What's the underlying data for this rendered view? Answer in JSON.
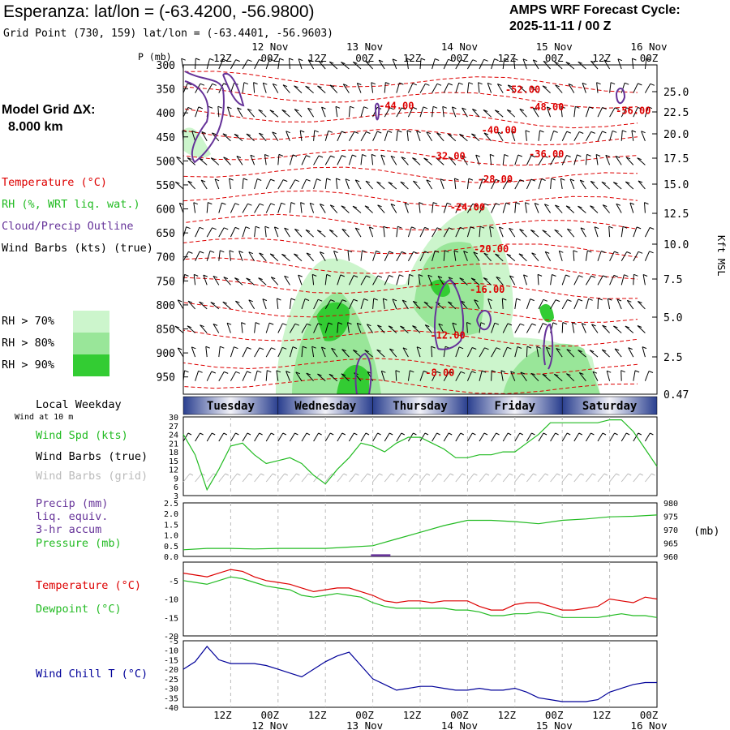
{
  "header": {
    "title": "Esperanza:  lat/lon = (-63.4200, -56.9800)",
    "subtitle": "Grid Point (730, 159) lat/lon = (-63.4401, -56.9603)",
    "cycle_line1": "AMPS WRF Forecast Cycle:",
    "cycle_line2": "2025-11-11 / 00  Z"
  },
  "model_grid": {
    "line1": "Model Grid ΔX:",
    "line2": "8.000 km"
  },
  "legend": {
    "temperature": "Temperature (°C)",
    "rh": "RH (%, WRT liq. wat.)",
    "cloud": "Cloud/Precip Outline",
    "wind_barbs": "Wind Barbs (kts) (true)",
    "rh70": "RH > 70%",
    "rh80": "RH > 80%",
    "rh90": "RH > 90%",
    "colors": {
      "rh70": "#ccf5cc",
      "rh80": "#99e699",
      "rh90": "#33cc33",
      "temp": "#dd0000",
      "cloud": "#663399"
    }
  },
  "panel_labels": {
    "p_axis": "P (mb)",
    "kft": "Kft MSL",
    "local_weekday": "Local Weekday",
    "wind_at": "Wind at 10 m",
    "wind_spd": "Wind Spd (kts)",
    "wind_barbs_true": "Wind Barbs (true)",
    "wind_barbs_grid": "Wind Barbs (grid)",
    "precip1": "Precip (mm)",
    "precip2": "liq. equiv.",
    "precip3": "3-hr accum",
    "pressure": "Pressure (mb)",
    "pressure_unit": "(mb)",
    "temperature": "Temperature (°C)",
    "dewpoint": "Dewpoint (°C)",
    "windchill": "Wind Chill T (°C)"
  },
  "time_axis": {
    "hours": [
      "12Z",
      "00Z",
      "12Z",
      "00Z",
      "12Z",
      "00Z",
      "12Z",
      "00Z",
      "12Z",
      "00Z"
    ],
    "dates": [
      "12 Nov",
      "13 Nov",
      "14 Nov",
      "15 Nov",
      "16 Nov"
    ],
    "weekdays": [
      "Tuesday",
      "Wednesday",
      "Thursday",
      "Friday",
      "Saturday"
    ]
  },
  "chart_data": [
    {
      "type": "heatmap",
      "name": "cross-section",
      "pressure_ticks": [
        300,
        350,
        400,
        450,
        500,
        550,
        600,
        650,
        700,
        750,
        800,
        850,
        900,
        950
      ],
      "height_ticks": [
        "25.0",
        "22.5",
        "20.0",
        "17.5",
        "15.0",
        "12.5",
        "10.0",
        "7.5",
        "5.0",
        "2.5",
        "0.47"
      ],
      "temperature_labels": [
        {
          "t": 114,
          "p": 402,
          "v": "-56.00"
        },
        {
          "t": 86,
          "p": 358,
          "v": "-52.00"
        },
        {
          "t": 54,
          "p": 392,
          "v": "-44.00"
        },
        {
          "t": 92,
          "p": 395,
          "v": "-48.00"
        },
        {
          "t": 80,
          "p": 443,
          "v": "-40.00"
        },
        {
          "t": 67,
          "p": 497,
          "v": "-32.00"
        },
        {
          "t": 92,
          "p": 493,
          "v": "-36.00"
        },
        {
          "t": 79,
          "p": 545,
          "v": "-28.00"
        },
        {
          "t": 72,
          "p": 603,
          "v": "-24.00"
        },
        {
          "t": 78,
          "p": 690,
          "v": "-20.00"
        },
        {
          "t": 77,
          "p": 775,
          "v": "-16.00"
        },
        {
          "t": 67,
          "p": 870,
          "v": "-12.00"
        },
        {
          "t": 65,
          "p": 948,
          "v": "-8.00"
        }
      ]
    },
    {
      "type": "line",
      "name": "wind-speed",
      "ylim": [
        3,
        30
      ],
      "yticks": [
        3,
        6,
        9,
        12,
        15,
        18,
        21,
        24,
        27,
        30
      ],
      "x": [
        0,
        3,
        6,
        9,
        12,
        15,
        18,
        21,
        24,
        27,
        30,
        33,
        36,
        39,
        42,
        45,
        48,
        51,
        54,
        57,
        60,
        63,
        66,
        69,
        72,
        75,
        78,
        81,
        84,
        87,
        90,
        93,
        96,
        99,
        102,
        105,
        108,
        111,
        114,
        117,
        120
      ],
      "values": [
        24,
        17,
        5,
        12,
        20,
        21,
        17,
        14,
        15,
        16,
        14,
        10,
        7,
        12,
        16,
        21,
        20,
        18,
        21,
        23,
        23,
        21,
        19,
        16,
        16,
        17,
        17,
        18,
        18,
        21,
        24,
        28,
        28,
        28,
        28,
        28,
        29,
        29,
        25,
        19,
        13
      ]
    },
    {
      "type": "line",
      "name": "pressure-precip",
      "precip_ylim": [
        0,
        2.5
      ],
      "precip_ticks": [
        "2.5",
        "2.0",
        "1.5",
        "1.0",
        "0.5",
        "0.0"
      ],
      "pressure_ylim": [
        960,
        980
      ],
      "pressure_ticks": [
        980,
        975,
        970,
        965,
        960
      ],
      "x": [
        0,
        6,
        12,
        18,
        24,
        30,
        36,
        42,
        48,
        54,
        60,
        66,
        72,
        78,
        84,
        90,
        96,
        102,
        108,
        114,
        120
      ],
      "pressure": [
        962.5,
        963,
        963,
        962.8,
        963,
        963,
        963,
        963.5,
        964,
        966.5,
        969,
        971.5,
        973.5,
        973.5,
        973,
        972.2,
        973.5,
        974,
        974.8,
        975,
        975.5
      ],
      "precip": [
        {
          "x": 50,
          "v": 0.1
        }
      ]
    },
    {
      "type": "line",
      "name": "temperature-dewpoint",
      "ylim": [
        -20,
        0
      ],
      "yticks": [
        -5,
        -10,
        -15,
        -20
      ],
      "x": [
        0,
        3,
        6,
        9,
        12,
        15,
        18,
        21,
        24,
        27,
        30,
        33,
        36,
        39,
        42,
        45,
        48,
        51,
        54,
        57,
        60,
        63,
        66,
        69,
        72,
        75,
        78,
        81,
        84,
        87,
        90,
        93,
        96,
        99,
        102,
        105,
        108,
        111,
        114,
        117,
        120
      ],
      "temperature": [
        -3,
        -3.5,
        -4,
        -3,
        -2,
        -2.5,
        -4,
        -5,
        -5.5,
        -6,
        -7,
        -8,
        -7.5,
        -7,
        -7,
        -8,
        -9,
        -10.5,
        -11,
        -10.5,
        -10.5,
        -11,
        -10.5,
        -10.5,
        -10.5,
        -12,
        -13,
        -13,
        -11.5,
        -11,
        -11,
        -12,
        -13,
        -13,
        -12.5,
        -12,
        -10,
        -10.5,
        -11,
        -9.5,
        -10
      ],
      "dewpoint": [
        -5,
        -5.5,
        -6,
        -5,
        -4,
        -4.5,
        -5.5,
        -6.5,
        -7,
        -7.5,
        -9,
        -9.5,
        -9,
        -8.5,
        -9,
        -9.5,
        -11,
        -12,
        -12.5,
        -12.5,
        -12.5,
        -12.5,
        -12.5,
        -13,
        -13,
        -13.5,
        -14.5,
        -14.5,
        -14,
        -14,
        -13.5,
        -14,
        -15,
        -15,
        -15,
        -15,
        -14.5,
        -14,
        -14.5,
        -14.5,
        -15
      ]
    },
    {
      "type": "line",
      "name": "wind-chill",
      "ylim": [
        -40,
        -5
      ],
      "yticks": [
        -5,
        -10,
        -15,
        -20,
        -25,
        -30,
        -35,
        -40
      ],
      "x": [
        0,
        3,
        6,
        9,
        12,
        15,
        18,
        21,
        24,
        27,
        30,
        33,
        36,
        39,
        42,
        45,
        48,
        51,
        54,
        57,
        60,
        63,
        66,
        69,
        72,
        75,
        78,
        81,
        84,
        87,
        90,
        93,
        96,
        99,
        102,
        105,
        108,
        111,
        114,
        117,
        120
      ],
      "values": [
        -20,
        -16,
        -8,
        -15,
        -17,
        -17,
        -17,
        -18,
        -20,
        -22,
        -24,
        -20,
        -16,
        -13,
        -11,
        -18,
        -25,
        -28,
        -31,
        -30,
        -29,
        -29,
        -30,
        -31,
        -31,
        -30,
        -31,
        -31,
        -30,
        -32,
        -35,
        -36,
        -37,
        -37,
        -37,
        -36,
        -32,
        -30,
        -28,
        -27,
        -27
      ]
    }
  ]
}
